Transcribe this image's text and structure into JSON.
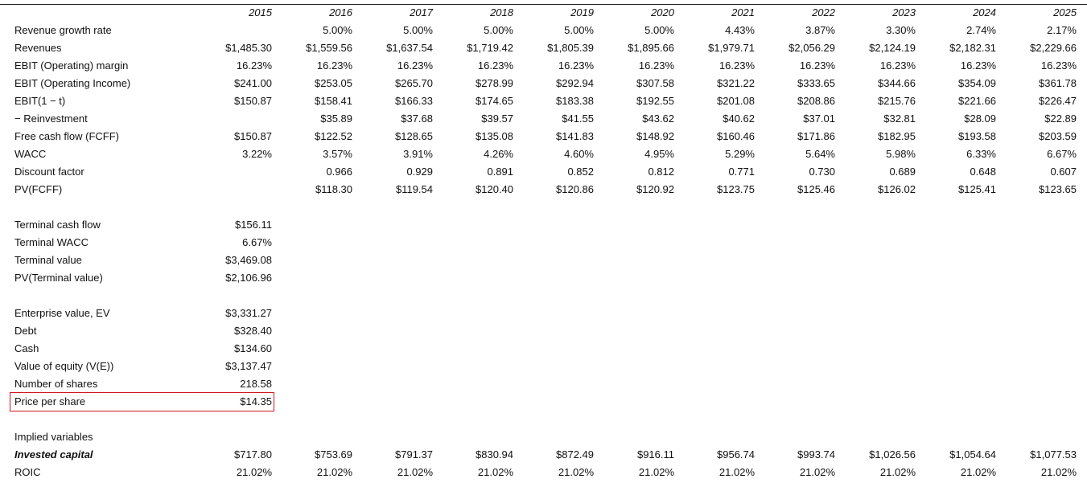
{
  "table": {
    "columns": [
      "2015",
      "2016",
      "2017",
      "2018",
      "2019",
      "2020",
      "2021",
      "2022",
      "2023",
      "2024",
      "2025"
    ],
    "sections": [
      {
        "rows": [
          {
            "label": "Revenue growth rate",
            "cells": [
              null,
              "5.00%",
              "5.00%",
              "5.00%",
              "5.00%",
              "5.00%",
              "4.43%",
              "3.87%",
              "3.30%",
              "2.74%",
              "2.17%"
            ]
          },
          {
            "label": "Revenues",
            "cells": [
              "$1,485.30",
              "$1,559.56",
              "$1,637.54",
              "$1,719.42",
              "$1,805.39",
              "$1,895.66",
              "$1,979.71",
              "$2,056.29",
              "$2,124.19",
              "$2,182.31",
              "$2,229.66"
            ]
          },
          {
            "label": "EBIT (Operating) margin",
            "cells": [
              "16.23%",
              "16.23%",
              "16.23%",
              "16.23%",
              "16.23%",
              "16.23%",
              "16.23%",
              "16.23%",
              "16.23%",
              "16.23%",
              "16.23%"
            ]
          },
          {
            "label": "EBIT (Operating Income)",
            "cells": [
              "$241.00",
              "$253.05",
              "$265.70",
              "$278.99",
              "$292.94",
              "$307.58",
              "$321.22",
              "$333.65",
              "$344.66",
              "$354.09",
              "$361.78"
            ]
          },
          {
            "label": "EBIT(1 − t)",
            "cells": [
              "$150.87",
              "$158.41",
              "$166.33",
              "$174.65",
              "$183.38",
              "$192.55",
              "$201.08",
              "$208.86",
              "$215.76",
              "$221.66",
              "$226.47"
            ]
          },
          {
            "label": "− Reinvestment",
            "cells": [
              null,
              "$35.89",
              "$37.68",
              "$39.57",
              "$41.55",
              "$43.62",
              "$40.62",
              "$37.01",
              "$32.81",
              "$28.09",
              "$22.89"
            ]
          },
          {
            "label": "Free cash flow (FCFF)",
            "cells": [
              "$150.87",
              "$122.52",
              "$128.65",
              "$135.08",
              "$141.83",
              "$148.92",
              "$160.46",
              "$171.86",
              "$182.95",
              "$193.58",
              "$203.59"
            ]
          },
          {
            "label": "WACC",
            "cells": [
              "3.22%",
              "3.57%",
              "3.91%",
              "4.26%",
              "4.60%",
              "4.95%",
              "5.29%",
              "5.64%",
              "5.98%",
              "6.33%",
              "6.67%"
            ]
          },
          {
            "label": "Discount factor",
            "cells": [
              null,
              "0.966",
              "0.929",
              "0.891",
              "0.852",
              "0.812",
              "0.771",
              "0.730",
              "0.689",
              "0.648",
              "0.607"
            ]
          },
          {
            "label": "PV(FCFF)",
            "cells": [
              null,
              "$118.30",
              "$119.54",
              "$120.40",
              "$120.86",
              "$120.92",
              "$123.75",
              "$125.46",
              "$126.02",
              "$125.41",
              "$123.65"
            ]
          }
        ]
      },
      {
        "rows": [
          {
            "label": "Terminal cash flow",
            "cells": [
              "$156.11"
            ]
          },
          {
            "label": "Terminal WACC",
            "cells": [
              "6.67%"
            ]
          },
          {
            "label": "Terminal value",
            "cells": [
              "$3,469.08"
            ]
          },
          {
            "label": "PV(Terminal value)",
            "cells": [
              "$2,106.96"
            ]
          }
        ]
      },
      {
        "rows": [
          {
            "label": "Enterprise value, EV",
            "cells": [
              "$3,331.27"
            ]
          },
          {
            "label": "Debt",
            "cells": [
              "$328.40"
            ]
          },
          {
            "label": "Cash",
            "cells": [
              "$134.60"
            ]
          },
          {
            "label": "Value of equity (V(E))",
            "cells": [
              "$3,137.47"
            ]
          },
          {
            "label": "Number of shares",
            "cells": [
              "218.58"
            ]
          },
          {
            "label": "Price per share",
            "cells": [
              "$14.35"
            ]
          }
        ]
      },
      {
        "rows": [
          {
            "label": "Implied variables",
            "cells": []
          },
          {
            "label": "Invested capital",
            "cells": [
              "$717.80",
              "$753.69",
              "$791.37",
              "$830.94",
              "$872.49",
              "$916.11",
              "$956.74",
              "$993.74",
              "$1,026.56",
              "$1,054.64",
              "$1,077.53"
            ]
          },
          {
            "label": "ROIC",
            "cells": [
              "21.02%",
              "21.02%",
              "21.02%",
              "21.02%",
              "21.02%",
              "21.02%",
              "21.02%",
              "21.02%",
              "21.02%",
              "21.02%",
              "21.02%"
            ]
          }
        ]
      }
    ]
  }
}
